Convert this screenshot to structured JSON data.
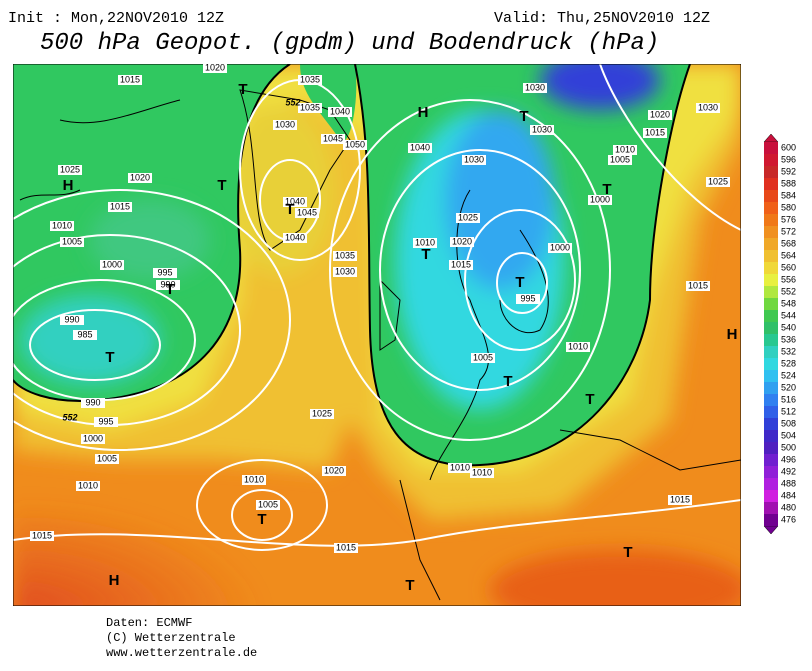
{
  "header": {
    "init": "Init : Mon,22NOV2010 12Z",
    "valid": "Valid: Thu,25NOV2010 12Z",
    "title": "500 hPa Geopot. (gpdm) und Bodendruck (hPa)"
  },
  "isobar_labels": [
    1015,
    1020,
    1035,
    1035,
    1040,
    1030,
    1045,
    1050,
    1040,
    1030,
    1030,
    1030,
    1030,
    1020,
    1015,
    1010,
    1005,
    1000,
    1025,
    1025,
    1020,
    1015,
    1010,
    1005,
    1000,
    995,
    990,
    990,
    985,
    990,
    995,
    1000,
    1005,
    1010,
    1015,
    1040,
    1045,
    1040,
    1035,
    1030,
    1025,
    1010,
    1020,
    1015,
    1000,
    995,
    1005,
    1010,
    1015,
    1025,
    1020,
    1010,
    1005,
    1015,
    1010,
    1010,
    1015
  ],
  "contour_labels": [
    552,
    552
  ],
  "pressure_systems": [
    "H",
    "H",
    "H",
    "H",
    "T",
    "T",
    "T",
    "T",
    "T",
    "T",
    "T",
    "T",
    "T",
    "T",
    "T",
    "T",
    "T",
    "T"
  ],
  "colorbar": {
    "labels": [
      600,
      596,
      592,
      588,
      584,
      580,
      576,
      572,
      568,
      564,
      560,
      556,
      552,
      548,
      544,
      540,
      536,
      532,
      528,
      524,
      520,
      516,
      512,
      508,
      504,
      500,
      496,
      492,
      488,
      484,
      480,
      476
    ],
    "colors": [
      "#c8103c",
      "#d01830",
      "#c82828",
      "#e03020",
      "#e84818",
      "#f06018",
      "#f07818",
      "#f09020",
      "#f0a828",
      "#f0c030",
      "#f0d838",
      "#e8f040",
      "#b0e840",
      "#70d840",
      "#40c850",
      "#30c068",
      "#28c890",
      "#30d0c0",
      "#30d8e0",
      "#30c0f0",
      "#30a0f0",
      "#3080f0",
      "#3060e8",
      "#3040d8",
      "#4028c8",
      "#5020c0",
      "#7020d0",
      "#9020d8",
      "#b020e0",
      "#d020e0",
      "#a010b0",
      "#700090"
    ]
  },
  "footer": [
    "Daten: ECMWF",
    "(C) Wetterzentrale",
    "www.wetterzentrale.de"
  ]
}
